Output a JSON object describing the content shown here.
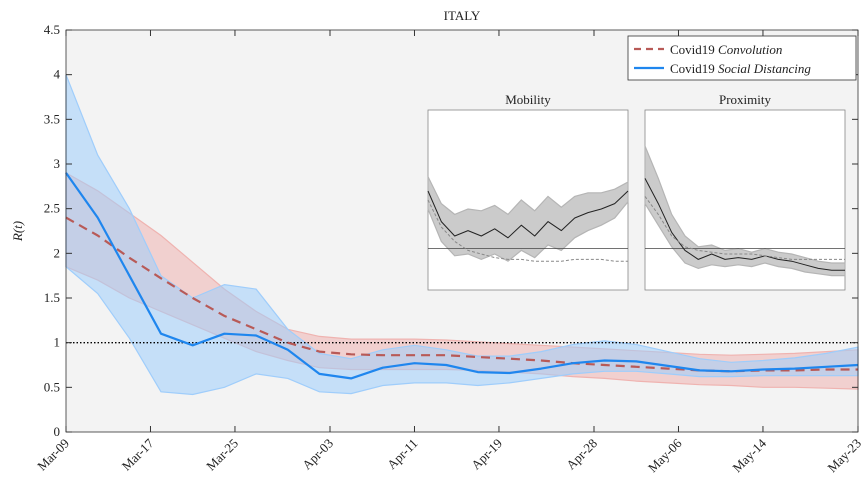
{
  "chart_data": [
    {
      "type": "line",
      "title": "ITALY",
      "ylabel": "R(t)",
      "xlim": [
        0,
        75
      ],
      "ylim": [
        0,
        4.5
      ],
      "xticks": [
        {
          "value": 0,
          "label": "Mar-09"
        },
        {
          "value": 8,
          "label": "Mar-17"
        },
        {
          "value": 16,
          "label": "Mar-25"
        },
        {
          "value": 25,
          "label": "Apr-03"
        },
        {
          "value": 33,
          "label": "Apr-11"
        },
        {
          "value": 41,
          "label": "Apr-19"
        },
        {
          "value": 50,
          "label": "Apr-28"
        },
        {
          "value": 58,
          "label": "May-06"
        },
        {
          "value": 66,
          "label": "May-14"
        },
        {
          "value": 75,
          "label": "May-23"
        }
      ],
      "yticks": [
        0,
        0.5,
        1,
        1.5,
        2,
        2.5,
        3,
        3.5,
        4,
        4.5
      ],
      "grid": false,
      "legend": "upper right",
      "reference_line": 1,
      "x": [
        0,
        3,
        6,
        9,
        12,
        15,
        18,
        21,
        24,
        27,
        30,
        33,
        36,
        39,
        42,
        45,
        48,
        51,
        54,
        57,
        60,
        63,
        66,
        69,
        72,
        75
      ],
      "series": [
        {
          "name": "Covid19 Convolution",
          "color": "#b85a57",
          "band_color": "#efb3b0",
          "dash": true,
          "values": [
            2.4,
            2.2,
            1.95,
            1.72,
            1.5,
            1.3,
            1.15,
            1.0,
            0.9,
            0.87,
            0.86,
            0.86,
            0.86,
            0.84,
            0.82,
            0.8,
            0.77,
            0.75,
            0.73,
            0.71,
            0.69,
            0.68,
            0.69,
            0.69,
            0.7,
            0.7
          ],
          "lower": [
            1.85,
            1.7,
            1.5,
            1.35,
            1.2,
            1.05,
            0.9,
            0.8,
            0.72,
            0.7,
            0.7,
            0.7,
            0.7,
            0.69,
            0.67,
            0.65,
            0.62,
            0.6,
            0.57,
            0.55,
            0.53,
            0.52,
            0.5,
            0.5,
            0.49,
            0.48
          ],
          "upper": [
            2.9,
            2.7,
            2.45,
            2.2,
            1.9,
            1.6,
            1.35,
            1.15,
            1.07,
            1.04,
            1.04,
            1.04,
            1.03,
            1.01,
            0.99,
            0.97,
            0.95,
            0.93,
            0.91,
            0.89,
            0.87,
            0.86,
            0.87,
            0.88,
            0.9,
            0.92
          ]
        },
        {
          "name": "Covid19 Social Distancing",
          "color": "#1f86ee",
          "band_color": "#9fcdfb",
          "dash": false,
          "values": [
            2.9,
            2.4,
            1.75,
            1.1,
            0.97,
            1.1,
            1.08,
            0.92,
            0.65,
            0.6,
            0.72,
            0.77,
            0.75,
            0.67,
            0.66,
            0.71,
            0.77,
            0.8,
            0.79,
            0.74,
            0.69,
            0.68,
            0.7,
            0.71,
            0.73,
            0.75
          ],
          "lower": [
            1.85,
            1.55,
            1.05,
            0.45,
            0.42,
            0.5,
            0.65,
            0.6,
            0.45,
            0.43,
            0.52,
            0.55,
            0.55,
            0.52,
            0.55,
            0.6,
            0.65,
            0.68,
            0.68,
            0.65,
            0.62,
            0.62,
            0.63,
            0.63,
            0.63,
            0.63
          ],
          "upper": [
            4.0,
            3.1,
            2.5,
            1.75,
            1.5,
            1.65,
            1.6,
            1.15,
            0.88,
            0.82,
            0.92,
            0.97,
            0.92,
            0.85,
            0.85,
            0.9,
            0.98,
            1.02,
            0.98,
            0.9,
            0.82,
            0.78,
            0.8,
            0.83,
            0.88,
            0.95
          ]
        }
      ]
    },
    {
      "type": "line",
      "title": "Mobility",
      "xlim": [
        0,
        15
      ],
      "ylim": [
        0,
        1
      ],
      "reference_line": 0.23,
      "x": [
        0,
        1,
        2,
        3,
        4,
        5,
        6,
        7,
        8,
        9,
        10,
        11,
        12,
        13,
        14,
        15
      ],
      "series": [
        {
          "color": "#222222",
          "band_color": "#b5b5b5",
          "dash": false,
          "values": [
            0.55,
            0.38,
            0.3,
            0.33,
            0.3,
            0.34,
            0.29,
            0.36,
            0.3,
            0.38,
            0.33,
            0.4,
            0.43,
            0.45,
            0.48,
            0.55
          ],
          "lower": [
            0.45,
            0.27,
            0.19,
            0.2,
            0.17,
            0.2,
            0.16,
            0.22,
            0.18,
            0.25,
            0.22,
            0.29,
            0.33,
            0.36,
            0.4,
            0.49
          ],
          "upper": [
            0.63,
            0.48,
            0.42,
            0.45,
            0.44,
            0.47,
            0.42,
            0.5,
            0.44,
            0.52,
            0.46,
            0.52,
            0.54,
            0.54,
            0.56,
            0.6
          ]
        },
        {
          "color": "#888888",
          "dash": true,
          "values": [
            0.5,
            0.35,
            0.27,
            0.22,
            0.2,
            0.18,
            0.17,
            0.17,
            0.16,
            0.16,
            0.16,
            0.17,
            0.17,
            0.17,
            0.16,
            0.16
          ]
        }
      ]
    },
    {
      "type": "line",
      "title": "Proximity",
      "xlim": [
        0,
        15
      ],
      "ylim": [
        0,
        1
      ],
      "reference_line": 0.23,
      "x": [
        0,
        1,
        2,
        3,
        4,
        5,
        6,
        7,
        8,
        9,
        10,
        11,
        12,
        13,
        14,
        15
      ],
      "series": [
        {
          "color": "#222222",
          "band_color": "#b5b5b5",
          "dash": false,
          "values": [
            0.62,
            0.48,
            0.32,
            0.22,
            0.17,
            0.2,
            0.17,
            0.18,
            0.17,
            0.19,
            0.17,
            0.16,
            0.14,
            0.12,
            0.11,
            0.11
          ],
          "lower": [
            0.48,
            0.36,
            0.24,
            0.15,
            0.12,
            0.14,
            0.13,
            0.14,
            0.13,
            0.15,
            0.13,
            0.12,
            0.1,
            0.09,
            0.08,
            0.08
          ],
          "upper": [
            0.8,
            0.62,
            0.42,
            0.3,
            0.24,
            0.25,
            0.22,
            0.23,
            0.21,
            0.23,
            0.21,
            0.2,
            0.18,
            0.16,
            0.15,
            0.15
          ]
        },
        {
          "color": "#888888",
          "dash": true,
          "values": [
            0.52,
            0.42,
            0.3,
            0.24,
            0.22,
            0.21,
            0.2,
            0.2,
            0.2,
            0.19,
            0.18,
            0.17,
            0.17,
            0.17,
            0.17,
            0.17
          ]
        }
      ]
    }
  ]
}
